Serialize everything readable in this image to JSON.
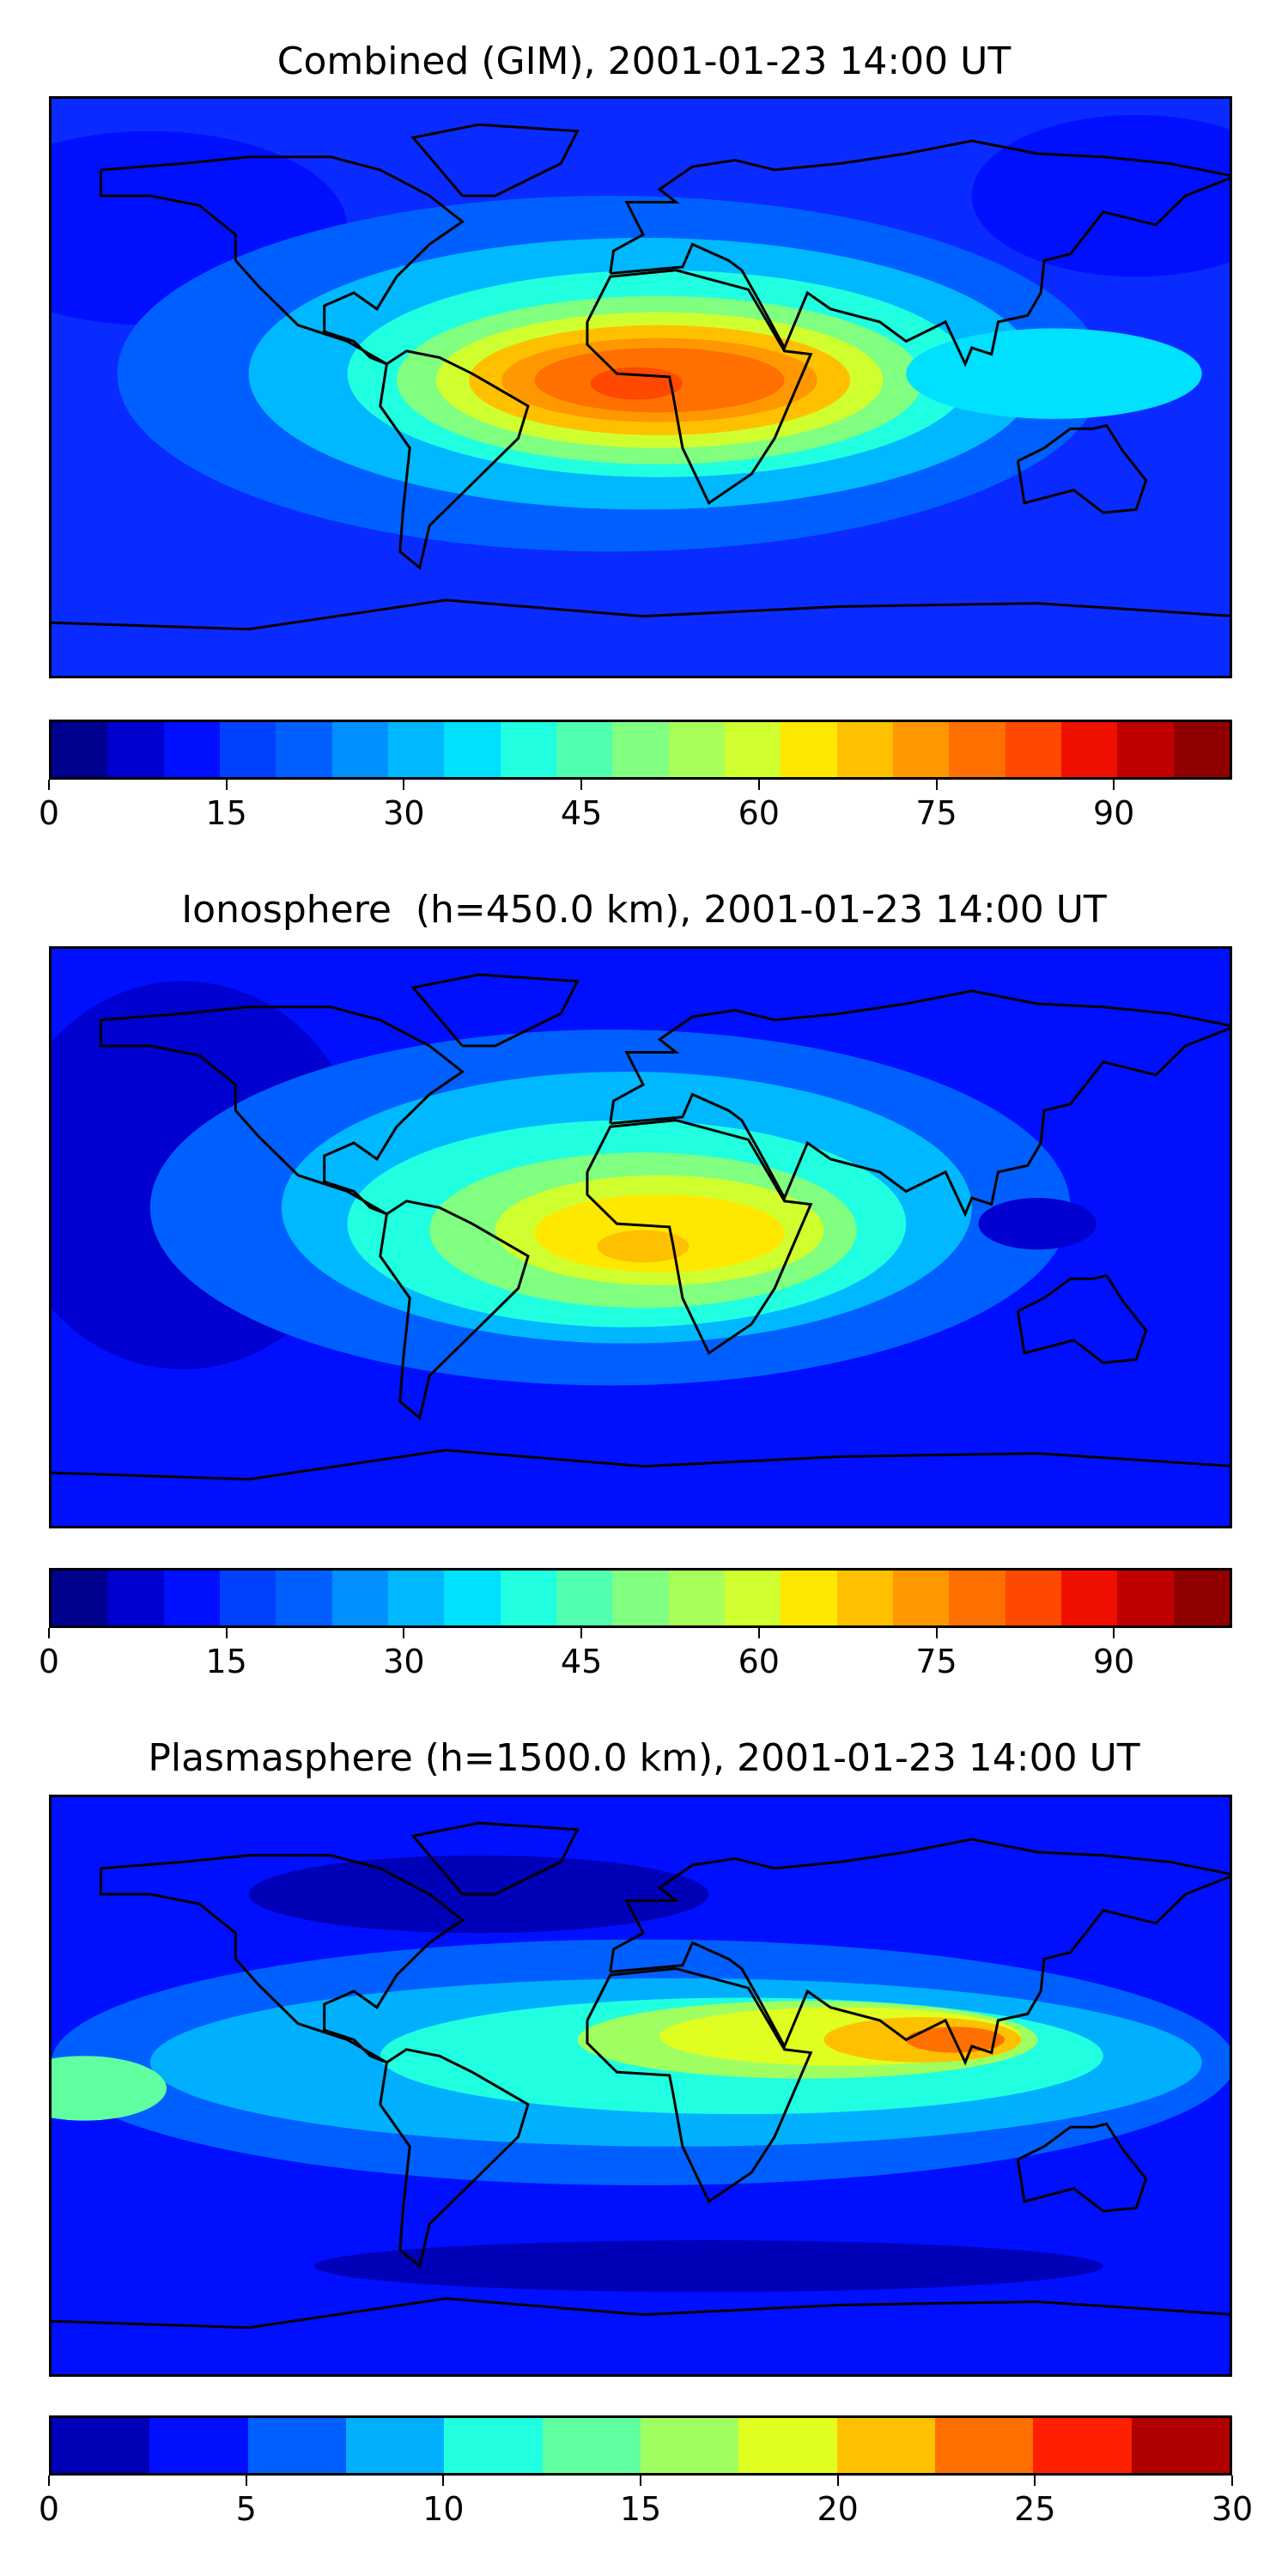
{
  "panels": [
    {
      "title": "Combined (GIM), 2001-01-23 14:00 UT",
      "colorbar": {
        "min": 0,
        "max": 100,
        "ticks": [
          "0",
          "15",
          "30",
          "45",
          "60",
          "75",
          "90"
        ],
        "tick_values": [
          0,
          15,
          30,
          45,
          60,
          75,
          90
        ],
        "colors": [
          "#00008f",
          "#0000d0",
          "#0010ff",
          "#0040ff",
          "#0060ff",
          "#0090ff",
          "#00b8ff",
          "#00e0ff",
          "#20ffe0",
          "#50ffb0",
          "#80ff80",
          "#a8ff58",
          "#d0ff30",
          "#ffe800",
          "#ffc000",
          "#ff9800",
          "#ff7000",
          "#ff4800",
          "#f01000",
          "#c00000",
          "#900000"
        ]
      },
      "map": {
        "background_level": "#0a2bff",
        "blobs": [
          {
            "lon": -150,
            "lat": 50,
            "rx": 60,
            "ry": 30,
            "color": "#0010ff"
          },
          {
            "lon": 150,
            "lat": 60,
            "rx": 50,
            "ry": 25,
            "color": "#0010ff"
          },
          {
            "lon": -10,
            "lat": 5,
            "rx": 150,
            "ry": 55,
            "color": "#0060ff"
          },
          {
            "lon": 0,
            "lat": 5,
            "rx": 120,
            "ry": 42,
            "color": "#00b8ff"
          },
          {
            "lon": 5,
            "lat": 5,
            "rx": 95,
            "ry": 32,
            "color": "#20ffe0"
          },
          {
            "lon": 5,
            "lat": 3,
            "rx": 80,
            "ry": 26,
            "color": "#80ff80"
          },
          {
            "lon": 5,
            "lat": 3,
            "rx": 68,
            "ry": 21,
            "color": "#d0ff30"
          },
          {
            "lon": 5,
            "lat": 3,
            "rx": 58,
            "ry": 17,
            "color": "#ffc000"
          },
          {
            "lon": 5,
            "lat": 3,
            "rx": 48,
            "ry": 13,
            "color": "#ff9800"
          },
          {
            "lon": 5,
            "lat": 3,
            "rx": 38,
            "ry": 10,
            "color": "#ff7000"
          },
          {
            "lon": -2,
            "lat": 2,
            "rx": 14,
            "ry": 5,
            "color": "#ff4800"
          },
          {
            "lon": 125,
            "lat": 5,
            "rx": 45,
            "ry": 14,
            "color": "#00e0ff"
          }
        ]
      }
    },
    {
      "title": "Ionosphere  (h=450.0 km), 2001-01-23 14:00 UT",
      "colorbar": {
        "min": 0,
        "max": 100,
        "ticks": [
          "0",
          "15",
          "30",
          "45",
          "60",
          "75",
          "90"
        ],
        "tick_values": [
          0,
          15,
          30,
          45,
          60,
          75,
          90
        ],
        "colors": [
          "#00008f",
          "#0000d0",
          "#0010ff",
          "#0040ff",
          "#0060ff",
          "#0090ff",
          "#00b8ff",
          "#00e0ff",
          "#20ffe0",
          "#50ffb0",
          "#80ff80",
          "#a8ff58",
          "#d0ff30",
          "#ffe800",
          "#ffc000",
          "#ff9800",
          "#ff7000",
          "#ff4800",
          "#f01000",
          "#c00000",
          "#900000"
        ]
      },
      "map": {
        "background_level": "#0010ff",
        "blobs": [
          {
            "lon": -140,
            "lat": 20,
            "rx": 55,
            "ry": 60,
            "color": "#0000d0"
          },
          {
            "lon": -10,
            "lat": 10,
            "rx": 140,
            "ry": 55,
            "color": "#0060ff"
          },
          {
            "lon": -5,
            "lat": 10,
            "rx": 105,
            "ry": 42,
            "color": "#00b8ff"
          },
          {
            "lon": -5,
            "lat": 5,
            "rx": 85,
            "ry": 32,
            "color": "#20ffe0"
          },
          {
            "lon": 0,
            "lat": 3,
            "rx": 65,
            "ry": 24,
            "color": "#80ff80"
          },
          {
            "lon": 5,
            "lat": 3,
            "rx": 50,
            "ry": 17,
            "color": "#d0ff30"
          },
          {
            "lon": 5,
            "lat": 2,
            "rx": 38,
            "ry": 12,
            "color": "#ffe800"
          },
          {
            "lon": 0,
            "lat": -2,
            "rx": 14,
            "ry": 5,
            "color": "#ffc000"
          },
          {
            "lon": 120,
            "lat": 5,
            "rx": 18,
            "ry": 8,
            "color": "#0000d0"
          }
        ]
      }
    },
    {
      "title": "Plasmasphere (h=1500.0 km), 2001-01-23 14:00 UT",
      "colorbar": {
        "min": 0,
        "max": 30,
        "ticks": [
          "0",
          "5",
          "10",
          "15",
          "20",
          "25",
          "30"
        ],
        "tick_values": [
          0,
          5,
          10,
          15,
          20,
          25,
          30
        ],
        "colors": [
          "#0000b8",
          "#0010ff",
          "#0060ff",
          "#00b0ff",
          "#20ffe0",
          "#60ffa0",
          "#a0ff60",
          "#e0ff20",
          "#ffc000",
          "#ff7000",
          "#ff2000",
          "#b00000"
        ]
      },
      "map": {
        "background_level": "#0010ff",
        "blobs": [
          {
            "lon": 0,
            "lat": 8,
            "rx": 180,
            "ry": 38,
            "color": "#0060ff"
          },
          {
            "lon": 10,
            "lat": 8,
            "rx": 160,
            "ry": 26,
            "color": "#00b0ff"
          },
          {
            "lon": 30,
            "lat": 10,
            "rx": 110,
            "ry": 18,
            "color": "#20ffe0"
          },
          {
            "lon": -170,
            "lat": 0,
            "rx": 25,
            "ry": 10,
            "color": "#60ffa0"
          },
          {
            "lon": 50,
            "lat": 15,
            "rx": 70,
            "ry": 12,
            "color": "#a0ff60"
          },
          {
            "lon": 60,
            "lat": 16,
            "rx": 55,
            "ry": 9,
            "color": "#e0ff20"
          },
          {
            "lon": 85,
            "lat": 15,
            "rx": 30,
            "ry": 7,
            "color": "#ffc000"
          },
          {
            "lon": 95,
            "lat": 15,
            "rx": 15,
            "ry": 4,
            "color": "#ff7000"
          },
          {
            "lon": -50,
            "lat": 60,
            "rx": 70,
            "ry": 12,
            "color": "#0000b8"
          },
          {
            "lon": 20,
            "lat": -55,
            "rx": 120,
            "ry": 8,
            "color": "#0000b8"
          }
        ]
      }
    }
  ]
}
